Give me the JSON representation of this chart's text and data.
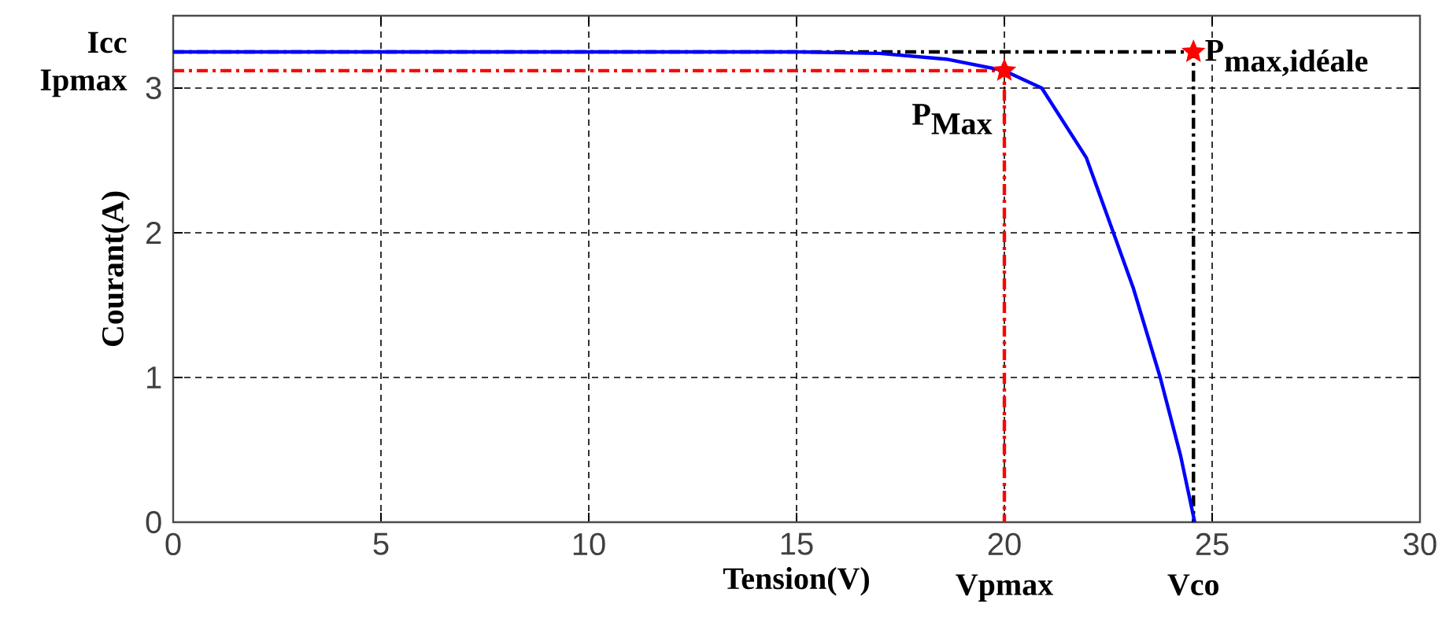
{
  "chart_data": {
    "type": "line",
    "xlabel": "Tension(V)",
    "ylabel": "Courant(A)",
    "xlim": [
      0,
      30
    ],
    "ylim": [
      0,
      3.5
    ],
    "xticks": [
      0,
      5,
      10,
      15,
      20,
      25,
      30
    ],
    "yticks": [
      0,
      1,
      2,
      3
    ],
    "grid": true,
    "series": [
      {
        "color": "#000000",
        "line_style": "dashed",
        "x": [
          0,
          24.55,
          24.55
        ],
        "values": [
          3.25,
          3.25,
          0
        ]
      },
      {
        "color": "#ff0000",
        "line_style": "dashed",
        "x": [
          0,
          20,
          20
        ],
        "values": [
          3.12,
          3.12,
          0
        ]
      },
      {
        "color": "#0000ff",
        "line_style": "solid",
        "x": [
          0,
          5,
          10,
          15,
          17,
          18.6,
          20,
          20.9,
          21.97,
          22.65,
          23.1,
          23.75,
          24.24,
          24.58
        ],
        "values": [
          3.25,
          3.25,
          3.25,
          3.25,
          3.24,
          3.2,
          3.12,
          3.0,
          2.52,
          1.98,
          1.62,
          1.0,
          0.46,
          0
        ]
      },
      {
        "type": "scatter",
        "color": "#ff0000",
        "marker": "star",
        "x": [
          20,
          24.55
        ],
        "values": [
          3.12,
          3.25
        ]
      }
    ],
    "annotations": [
      {
        "text": "Icc",
        "x": 0,
        "y": 3.25
      },
      {
        "text": "Ipmax",
        "x": 0,
        "y": 3.12
      },
      {
        "text": "Vpmax",
        "x": 20,
        "y": 0
      },
      {
        "text": "Vco",
        "x": 24.55,
        "y": 0
      },
      {
        "text": "\\textbf{P}_{\\textbf{Max}}",
        "x": 20,
        "y": 3.12
      },
      {
        "text": "\\textbf{P}_{\\textbf{max,idéale}}",
        "x": 24.55,
        "y": 3.25
      }
    ]
  }
}
